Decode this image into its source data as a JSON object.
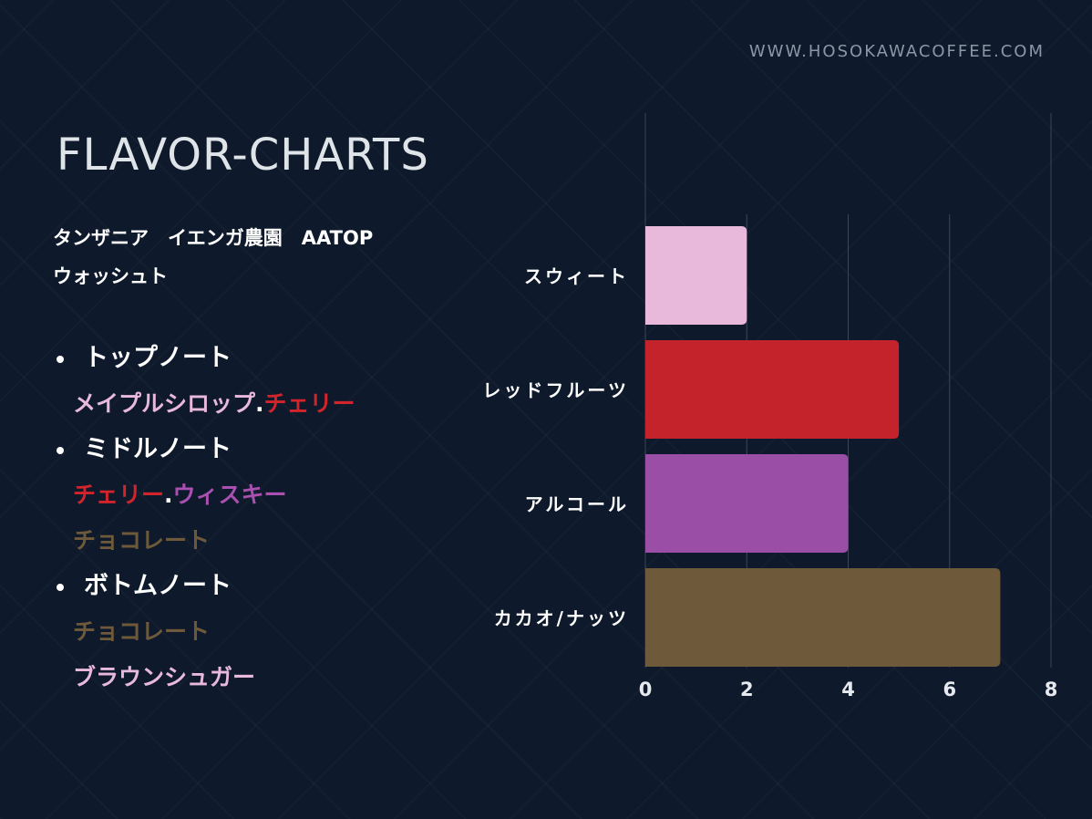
{
  "header": {
    "url": "WWW.HOSOKAWACOFFEE.COM"
  },
  "title": "FLAVOR-CHARTS",
  "coffee_name": "タンザニア　イエンガ農園　AATOP\nウォッシュト",
  "notes": {
    "top": {
      "label": "トップノート",
      "line1": [
        {
          "text": "メイプルシロップ",
          "color": "#e9b9dc"
        },
        {
          "text": ".",
          "color": "#ffffff"
        },
        {
          "text": "チェリー",
          "color": "#d3242c"
        }
      ]
    },
    "middle": {
      "label": "ミドルノート",
      "line1": [
        {
          "text": "チェリー",
          "color": "#d3242c"
        },
        {
          "text": ".",
          "color": "#ffffff"
        },
        {
          "text": "ウィスキー",
          "color": "#a950b0"
        }
      ],
      "line2": [
        {
          "text": "チョコレート",
          "color": "#6e5a3b"
        }
      ]
    },
    "bottom": {
      "label": "ボトムノート",
      "line1": [
        {
          "text": "チョコレート",
          "color": "#6e5a3b"
        }
      ],
      "line2": [
        {
          "text": "ブラウンシュガー",
          "color": "#e9b9dc"
        }
      ]
    }
  },
  "chart_data": {
    "type": "bar",
    "orientation": "horizontal",
    "categories": [
      "スウィート",
      "レッドフルーツ",
      "アルコール",
      "カカオ/ナッツ"
    ],
    "values": [
      2,
      5,
      4,
      7
    ],
    "colors": [
      "#e9b9dc",
      "#c4232b",
      "#9b4ea5",
      "#6e5a3b"
    ],
    "x_ticks": [
      "0",
      "2",
      "4",
      "6",
      "8"
    ],
    "xlim": [
      0,
      8
    ],
    "grid": true
  }
}
